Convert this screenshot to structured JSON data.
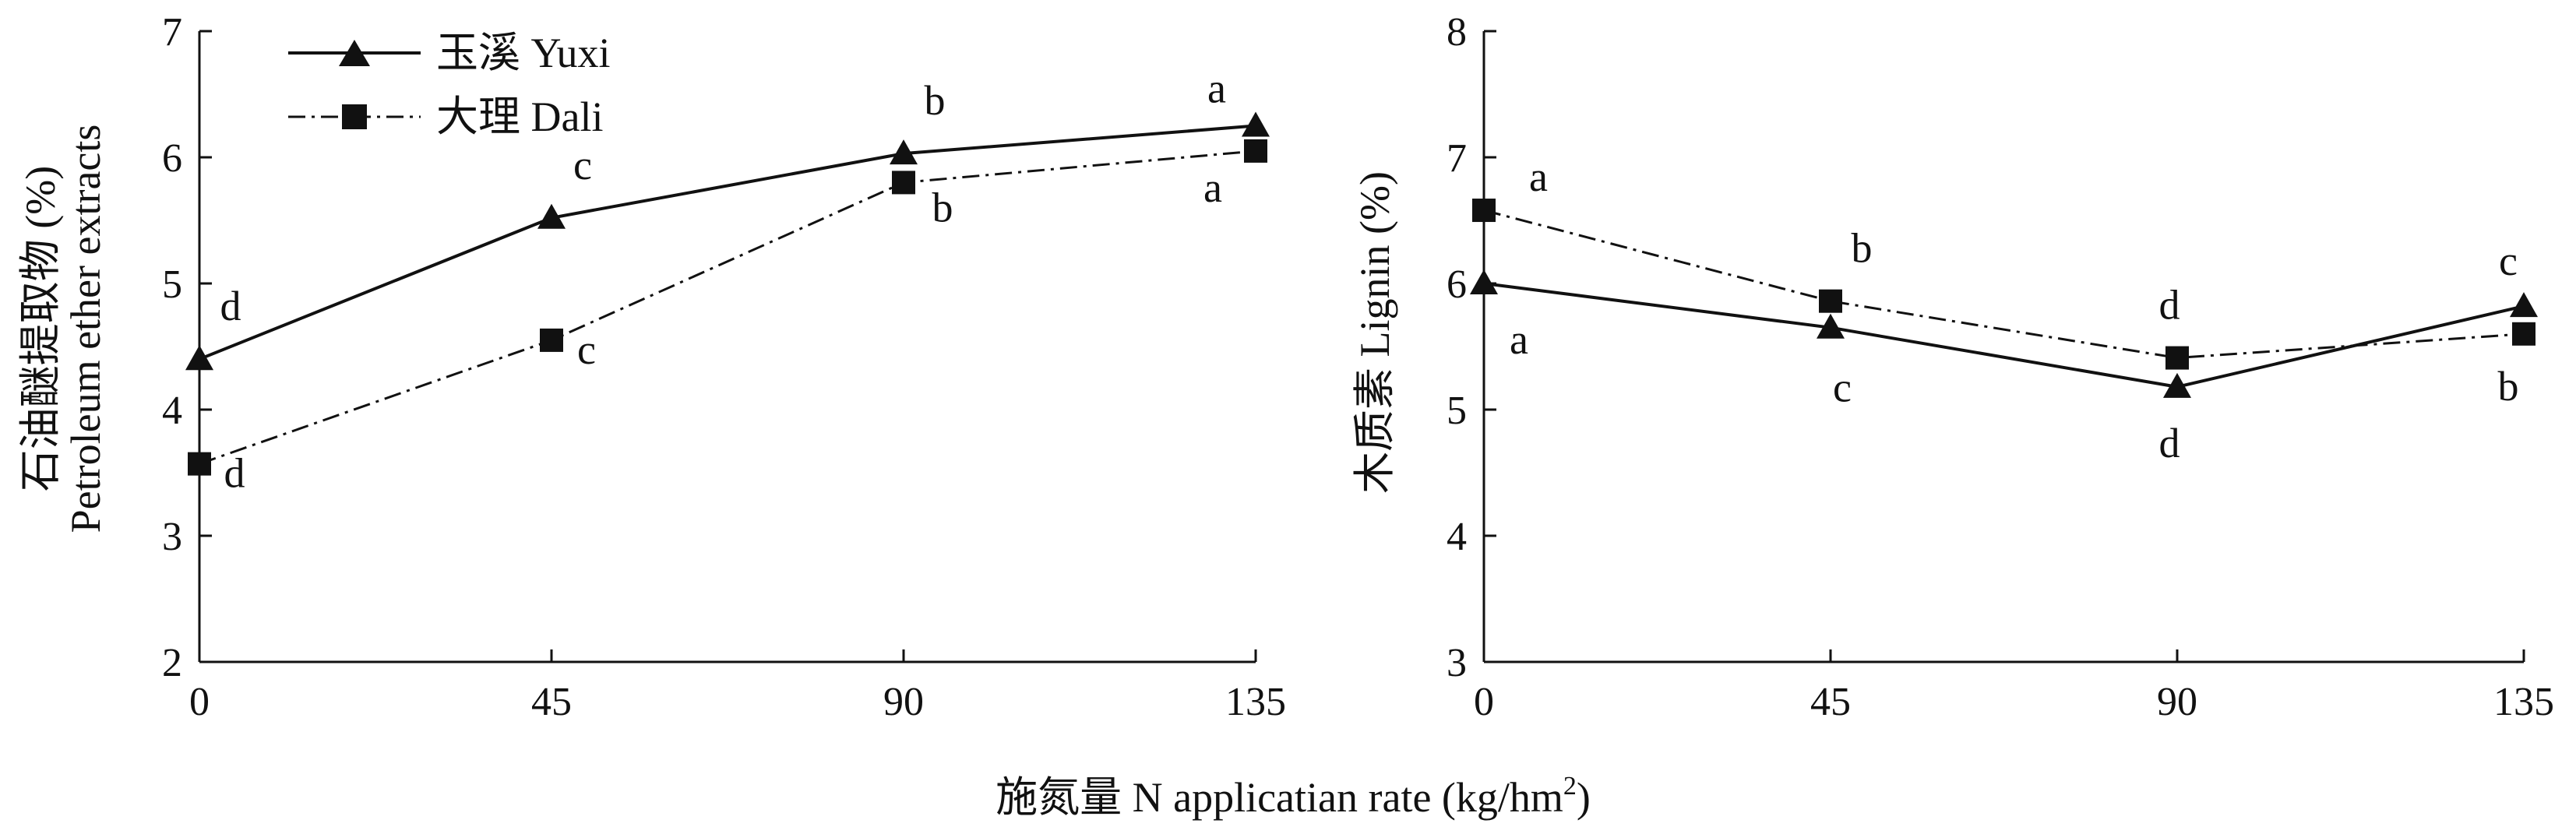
{
  "chart_data": [
    {
      "type": "line",
      "x": [
        0,
        45,
        90,
        135
      ],
      "xlim": [
        0,
        135
      ],
      "ylim": [
        2,
        7
      ],
      "yticks": [
        2,
        3,
        4,
        5,
        6,
        7
      ],
      "ylabel_cn": "石油醚提取物 (%)",
      "ylabel_en": "Petroleum ether extracts",
      "series": [
        {
          "name": "玉溪 Yuxi",
          "marker": "triangle",
          "linestyle": "solid",
          "values": [
            4.4,
            5.52,
            6.03,
            6.25
          ],
          "letters": [
            "d",
            "c",
            "b",
            "a"
          ]
        },
        {
          "name": "大理 Dali",
          "marker": "square",
          "linestyle": "dash-dot",
          "values": [
            3.57,
            4.55,
            5.8,
            6.05
          ],
          "letters": [
            "d",
            "c",
            "b",
            "a"
          ]
        }
      ]
    },
    {
      "type": "line",
      "x": [
        0,
        45,
        90,
        135
      ],
      "xlim": [
        0,
        135
      ],
      "ylim": [
        3,
        8
      ],
      "yticks": [
        3,
        4,
        5,
        6,
        7,
        8
      ],
      "ylabel": "木质素 Lignin (%)",
      "series": [
        {
          "name": "玉溪 Yuxi",
          "marker": "triangle",
          "linestyle": "solid",
          "values": [
            6.0,
            5.65,
            5.18,
            5.82
          ],
          "letters": [
            "a",
            "c",
            "d",
            "c"
          ]
        },
        {
          "name": "大理 Dali",
          "marker": "square",
          "linestyle": "dash-dot",
          "values": [
            6.58,
            5.86,
            5.41,
            5.6
          ],
          "letters": [
            "a",
            "b",
            "d",
            "b"
          ]
        }
      ]
    }
  ],
  "xlabel": "施氮量 N applicatian rate (kg/hm",
  "xlabel_sup": "2",
  "xlabel_close": ")",
  "legend": {
    "items": [
      {
        "label": "玉溪 Yuxi",
        "marker": "triangle",
        "linestyle": "solid"
      },
      {
        "label": "大理 Dali",
        "marker": "square",
        "linestyle": "dash-dot"
      }
    ]
  },
  "colors": {
    "line": "#111111",
    "background": "#ffffff"
  }
}
